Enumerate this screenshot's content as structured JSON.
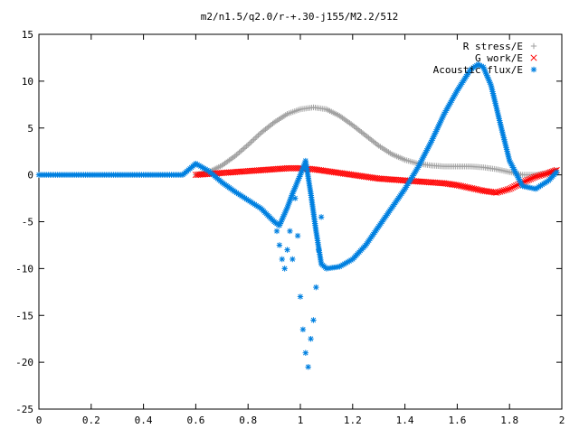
{
  "chart_data": {
    "type": "scatter",
    "title": "m2/n1.5/q2.0/r-+.30-j155/M2.2/512",
    "xlabel": "",
    "ylabel": "",
    "xlim": [
      0,
      2
    ],
    "ylim": [
      -25,
      15
    ],
    "x_ticks": [
      0,
      0.2,
      0.4,
      0.6,
      0.8,
      1,
      1.2,
      1.4,
      1.6,
      1.8,
      2
    ],
    "x_tick_labels": [
      "0",
      "0.2",
      "0.4",
      "0.6",
      "0.8",
      "1",
      "1.2",
      "1.4",
      "1.6",
      "1.8",
      "2"
    ],
    "y_ticks": [
      -25,
      -20,
      -15,
      -10,
      -5,
      0,
      5,
      10,
      15
    ],
    "y_tick_labels": [
      "-25",
      "-20",
      "-15",
      "-10",
      "-5",
      "0",
      "5",
      "10",
      "15"
    ],
    "legend_position": "top-right",
    "series": [
      {
        "name": "R stress/E",
        "marker": "+",
        "color": "#a0a0a0",
        "x": [
          0.6,
          0.65,
          0.7,
          0.75,
          0.8,
          0.85,
          0.9,
          0.95,
          1.0,
          1.05,
          1.1,
          1.15,
          1.2,
          1.25,
          1.3,
          1.35,
          1.4,
          1.45,
          1.5,
          1.55,
          1.6,
          1.65,
          1.7,
          1.75,
          1.8,
          1.85,
          1.9,
          1.95,
          1.98
        ],
        "y": [
          0.0,
          0.3,
          1.0,
          2.0,
          3.2,
          4.5,
          5.6,
          6.5,
          7.0,
          7.2,
          7.0,
          6.3,
          5.3,
          4.2,
          3.1,
          2.2,
          1.6,
          1.2,
          1.0,
          0.9,
          0.9,
          0.9,
          0.8,
          0.6,
          0.3,
          0.0,
          0.0,
          0.2,
          0.5
        ]
      },
      {
        "name": "G work/E",
        "marker": "x",
        "color": "#ff0000",
        "x": [
          0.6,
          0.65,
          0.7,
          0.75,
          0.8,
          0.85,
          0.9,
          0.95,
          1.0,
          1.05,
          1.1,
          1.15,
          1.2,
          1.25,
          1.3,
          1.35,
          1.4,
          1.45,
          1.5,
          1.55,
          1.6,
          1.65,
          1.7,
          1.75,
          1.8,
          1.85,
          1.9,
          1.95,
          1.98
        ],
        "y": [
          0.0,
          0.1,
          0.2,
          0.3,
          0.4,
          0.5,
          0.6,
          0.7,
          0.7,
          0.6,
          0.4,
          0.2,
          0.0,
          -0.2,
          -0.4,
          -0.5,
          -0.6,
          -0.7,
          -0.8,
          -0.9,
          -1.1,
          -1.4,
          -1.7,
          -1.9,
          -1.5,
          -0.8,
          -0.2,
          0.2,
          0.5
        ]
      },
      {
        "name": "Acoustic flux/E",
        "marker": "*",
        "color": "#0080e0",
        "x": [
          0.0,
          0.05,
          0.1,
          0.15,
          0.2,
          0.25,
          0.3,
          0.35,
          0.4,
          0.45,
          0.5,
          0.55,
          0.6,
          0.65,
          0.7,
          0.75,
          0.8,
          0.85,
          0.9,
          0.92,
          0.95,
          0.97,
          1.0,
          1.02,
          1.04,
          1.06,
          1.08,
          1.1,
          1.15,
          1.2,
          1.25,
          1.3,
          1.35,
          1.4,
          1.45,
          1.5,
          1.55,
          1.6,
          1.65,
          1.68,
          1.7,
          1.73,
          1.76,
          1.8,
          1.85,
          1.9,
          1.95,
          1.98
        ],
        "y": [
          0,
          0,
          0,
          0,
          0,
          0,
          0,
          0,
          0,
          0,
          0,
          0,
          1.2,
          0.4,
          -0.8,
          -1.8,
          -2.7,
          -3.6,
          -5.0,
          -5.4,
          -3.5,
          -2.0,
          0.0,
          1.5,
          -2.0,
          -6.0,
          -9.5,
          -10.0,
          -9.8,
          -9.0,
          -7.5,
          -5.5,
          -3.5,
          -1.5,
          0.8,
          3.5,
          6.5,
          9.0,
          11.2,
          11.8,
          11.5,
          9.5,
          6.0,
          1.5,
          -1.2,
          -1.5,
          -0.6,
          0.3
        ],
        "scatter_x": [
          0.91,
          0.92,
          0.93,
          0.94,
          0.95,
          0.96,
          0.97,
          0.98,
          0.99,
          1.0,
          1.01,
          1.02,
          1.03,
          1.04,
          1.05,
          1.06,
          1.07,
          1.08
        ],
        "scatter_y": [
          -6,
          -7.5,
          -9,
          -10,
          -8,
          -6,
          -9,
          -2.5,
          -6.5,
          -13,
          -16.5,
          -19,
          -20.5,
          -17.5,
          -15.5,
          -12,
          -8,
          -4.5
        ]
      }
    ]
  }
}
